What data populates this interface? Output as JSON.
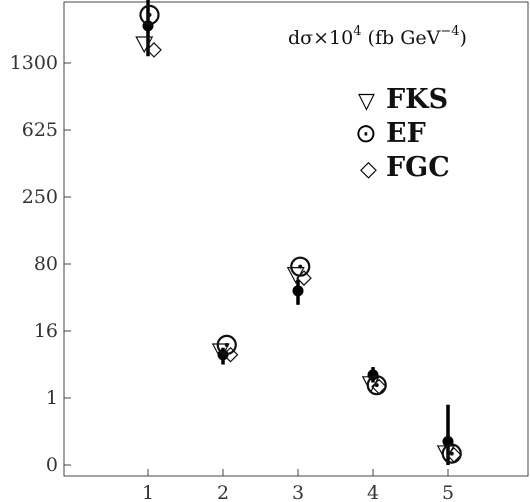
{
  "chart_data": {
    "type": "scatter",
    "title_parts": {
      "prefix": "dσ×10",
      "exponent": "4",
      "unit_open": " (fb GeV",
      "unit_exponent": "−4",
      "unit_close": ")"
    },
    "xlabel": "",
    "ylabel": "",
    "x_ticks": [
      "1",
      "2",
      "3",
      "4",
      "5"
    ],
    "y_ticks": [
      "0",
      "1",
      "16",
      "80",
      "250",
      "625",
      "1300"
    ],
    "y_scale": "ordinal-tick",
    "grid": false,
    "legend_position": "top-right",
    "legend": [
      {
        "key": "fks",
        "label": "FKS",
        "symbol": "▽"
      },
      {
        "key": "ef",
        "label": "EF",
        "symbol": "⊙"
      },
      {
        "key": "fgc",
        "label": "FGC",
        "symbol": "◇"
      }
    ],
    "measured": {
      "x": [
        1,
        2,
        3,
        4,
        5
      ],
      "y": [
        1950,
        6,
        42,
        2.6,
        0.35
      ],
      "err_low": [
        1400,
        4,
        30,
        1.9,
        0.0
      ],
      "err_high": [
        2700,
        8,
        55,
        3.6,
        0.9
      ]
    },
    "series": [
      {
        "key": "fks",
        "x": [
          0.95,
          1.97,
          2.97,
          3.97,
          4.97
        ],
        "y": [
          1600,
          7,
          62,
          1.8,
          0.18
        ]
      },
      {
        "key": "ef",
        "x": [
          1.02,
          2.05,
          3.03,
          4.05,
          5.05
        ],
        "y": [
          2200,
          9,
          75,
          1.7,
          0.17
        ]
      },
      {
        "key": "fgc",
        "x": [
          1.08,
          2.1,
          3.08,
          4.08,
          5.08
        ],
        "y": [
          1500,
          6,
          57,
          1.6,
          0.15
        ]
      }
    ]
  }
}
